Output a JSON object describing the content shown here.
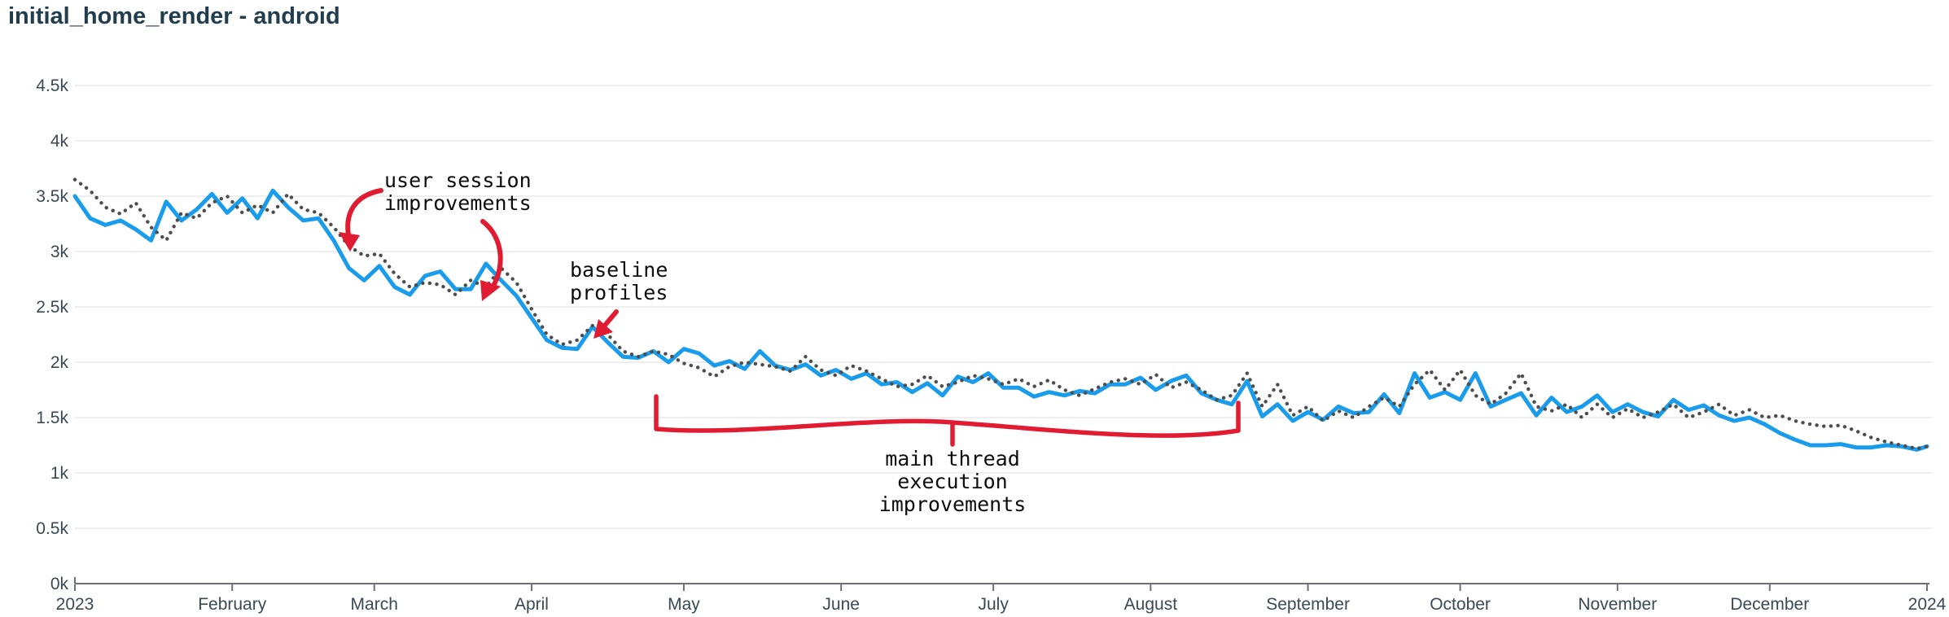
{
  "title": "initial_home_render - android",
  "colors": {
    "title_text": "#223d4d",
    "axis_label": "#3a4a55",
    "axis_line": "#6E7079",
    "gridline": "#e8e8e8",
    "solid_series": "#1a9cec",
    "dotted_series": "#4d4d4d",
    "annotation_red": "#e11b31",
    "annotation_text": "#0d0d0d",
    "background": "#ffffff"
  },
  "chart_data": {
    "type": "line",
    "title": "initial_home_render - android",
    "grid": "horizontal-only",
    "legend_position": "none",
    "x_axis": {
      "unit": "time",
      "range": [
        "2023-01-01",
        "2024-01-01"
      ],
      "ticks": [
        {
          "label": "2023",
          "day": 0
        },
        {
          "label": "February",
          "day": 31
        },
        {
          "label": "March",
          "day": 59
        },
        {
          "label": "April",
          "day": 90
        },
        {
          "label": "May",
          "day": 120
        },
        {
          "label": "June",
          "day": 151
        },
        {
          "label": "July",
          "day": 181
        },
        {
          "label": "August",
          "day": 212
        },
        {
          "label": "September",
          "day": 243
        },
        {
          "label": "October",
          "day": 273
        },
        {
          "label": "November",
          "day": 304
        },
        {
          "label": "December",
          "day": 334
        },
        {
          "label": "2024",
          "day": 365
        }
      ]
    },
    "y_axis": {
      "min": 0,
      "max": 4500,
      "tick_step": 500,
      "tick_labels": [
        "0k",
        "0.5k",
        "1k",
        "1.5k",
        "2k",
        "2.5k",
        "3k",
        "3.5k",
        "4k",
        "4.5k"
      ]
    },
    "sample_interval_days": 3,
    "value_unit": "k",
    "series": [
      {
        "name": "solid_blue_line",
        "style": "solid",
        "color": "#1a9cec",
        "values": [
          3.5,
          3.3,
          3.24,
          3.28,
          3.2,
          3.1,
          3.45,
          3.28,
          3.38,
          3.52,
          3.35,
          3.48,
          3.3,
          3.55,
          3.4,
          3.28,
          3.3,
          3.1,
          2.85,
          2.74,
          2.87,
          2.68,
          2.61,
          2.78,
          2.82,
          2.66,
          2.66,
          2.89,
          2.74,
          2.6,
          2.4,
          2.2,
          2.13,
          2.12,
          2.32,
          2.18,
          2.05,
          2.04,
          2.1,
          2.0,
          2.12,
          2.08,
          1.97,
          2.01,
          1.94,
          2.1,
          1.97,
          1.93,
          1.98,
          1.88,
          1.93,
          1.85,
          1.9,
          1.8,
          1.82,
          1.73,
          1.81,
          1.7,
          1.87,
          1.82,
          1.9,
          1.77,
          1.77,
          1.69,
          1.73,
          1.7,
          1.74,
          1.72,
          1.8,
          1.8,
          1.86,
          1.75,
          1.83,
          1.88,
          1.72,
          1.66,
          1.62,
          1.83,
          1.51,
          1.62,
          1.47,
          1.55,
          1.48,
          1.6,
          1.54,
          1.55,
          1.71,
          1.54,
          1.9,
          1.68,
          1.73,
          1.66,
          1.9,
          1.6,
          1.66,
          1.72,
          1.52,
          1.68,
          1.55,
          1.6,
          1.7,
          1.55,
          1.62,
          1.55,
          1.51,
          1.66,
          1.57,
          1.61,
          1.52,
          1.47,
          1.5,
          1.44,
          1.36,
          1.3,
          1.25,
          1.25,
          1.26,
          1.23,
          1.23,
          1.25,
          1.24,
          1.21,
          1.24
        ]
      },
      {
        "name": "dotted_gray_line",
        "style": "dotted",
        "color": "#4d4d4d",
        "values": [
          3.65,
          3.55,
          3.4,
          3.34,
          3.44,
          3.22,
          3.1,
          3.35,
          3.3,
          3.44,
          3.5,
          3.35,
          3.42,
          3.35,
          3.52,
          3.38,
          3.35,
          3.22,
          3.05,
          2.96,
          2.98,
          2.8,
          2.68,
          2.72,
          2.7,
          2.61,
          2.74,
          2.68,
          2.85,
          2.72,
          2.48,
          2.25,
          2.16,
          2.2,
          2.33,
          2.25,
          2.1,
          2.05,
          2.1,
          2.07,
          1.99,
          1.95,
          1.87,
          1.96,
          2.0,
          1.98,
          1.96,
          1.92,
          2.05,
          1.93,
          1.88,
          1.97,
          1.92,
          1.85,
          1.78,
          1.8,
          1.88,
          1.78,
          1.82,
          1.88,
          1.85,
          1.8,
          1.85,
          1.78,
          1.84,
          1.75,
          1.7,
          1.76,
          1.82,
          1.85,
          1.8,
          1.89,
          1.77,
          1.82,
          1.75,
          1.66,
          1.7,
          1.9,
          1.6,
          1.8,
          1.52,
          1.6,
          1.47,
          1.56,
          1.5,
          1.6,
          1.68,
          1.6,
          1.8,
          1.93,
          1.75,
          1.93,
          1.7,
          1.62,
          1.72,
          1.9,
          1.6,
          1.56,
          1.62,
          1.5,
          1.62,
          1.5,
          1.58,
          1.5,
          1.55,
          1.62,
          1.5,
          1.55,
          1.62,
          1.52,
          1.57,
          1.5,
          1.52,
          1.47,
          1.44,
          1.42,
          1.43,
          1.38,
          1.32,
          1.28,
          1.25,
          1.22,
          1.24
        ]
      }
    ],
    "annotations": [
      {
        "id": "user-session",
        "lines": [
          "user session",
          "improvements"
        ],
        "color": "#e11b31",
        "shape": "two curved arrows pointing at the late-February and late-March drops"
      },
      {
        "id": "baseline-profiles",
        "lines": [
          "baseline",
          "profiles"
        ],
        "color": "#e11b31",
        "shape": "short arrow pointing at the mid-April line level"
      },
      {
        "id": "main-thread",
        "lines": [
          "main thread",
          "execution",
          "improvements"
        ],
        "color": "#e11b31",
        "shape": "bracket spanning late April through mid August"
      }
    ]
  }
}
